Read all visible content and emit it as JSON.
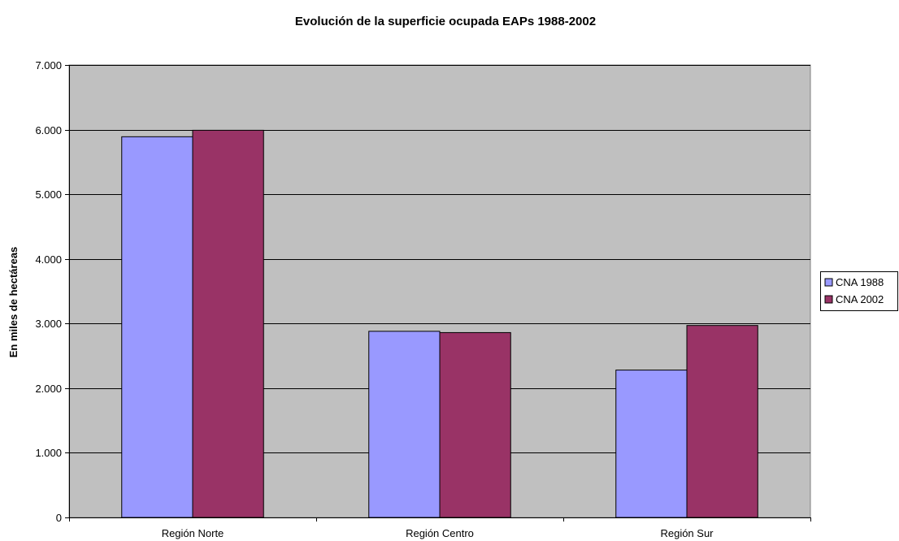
{
  "chart_data": {
    "type": "bar",
    "title": "Evolución de la superficie ocupada EAPs 1988-2002",
    "xlabel": "",
    "ylabel": "En miles de hectáreas",
    "categories": [
      "Región Norte",
      "Región Centro",
      "Región Sur"
    ],
    "series": [
      {
        "name": "CNA 1988",
        "color": "#9999ff",
        "values": [
          5890,
          2880,
          2280
        ]
      },
      {
        "name": "CNA 2002",
        "color": "#993366",
        "values": [
          5990,
          2860,
          2970
        ]
      }
    ],
    "ylim": [
      0,
      7000
    ],
    "yticks": [
      0,
      1000,
      2000,
      3000,
      4000,
      5000,
      6000,
      7000
    ],
    "ytick_labels": [
      "0",
      "1.000",
      "2.000",
      "3.000",
      "4.000",
      "5.000",
      "6.000",
      "7.000"
    ],
    "grid": true,
    "plot_background": "#c0c0c0",
    "legend_position": "right"
  }
}
